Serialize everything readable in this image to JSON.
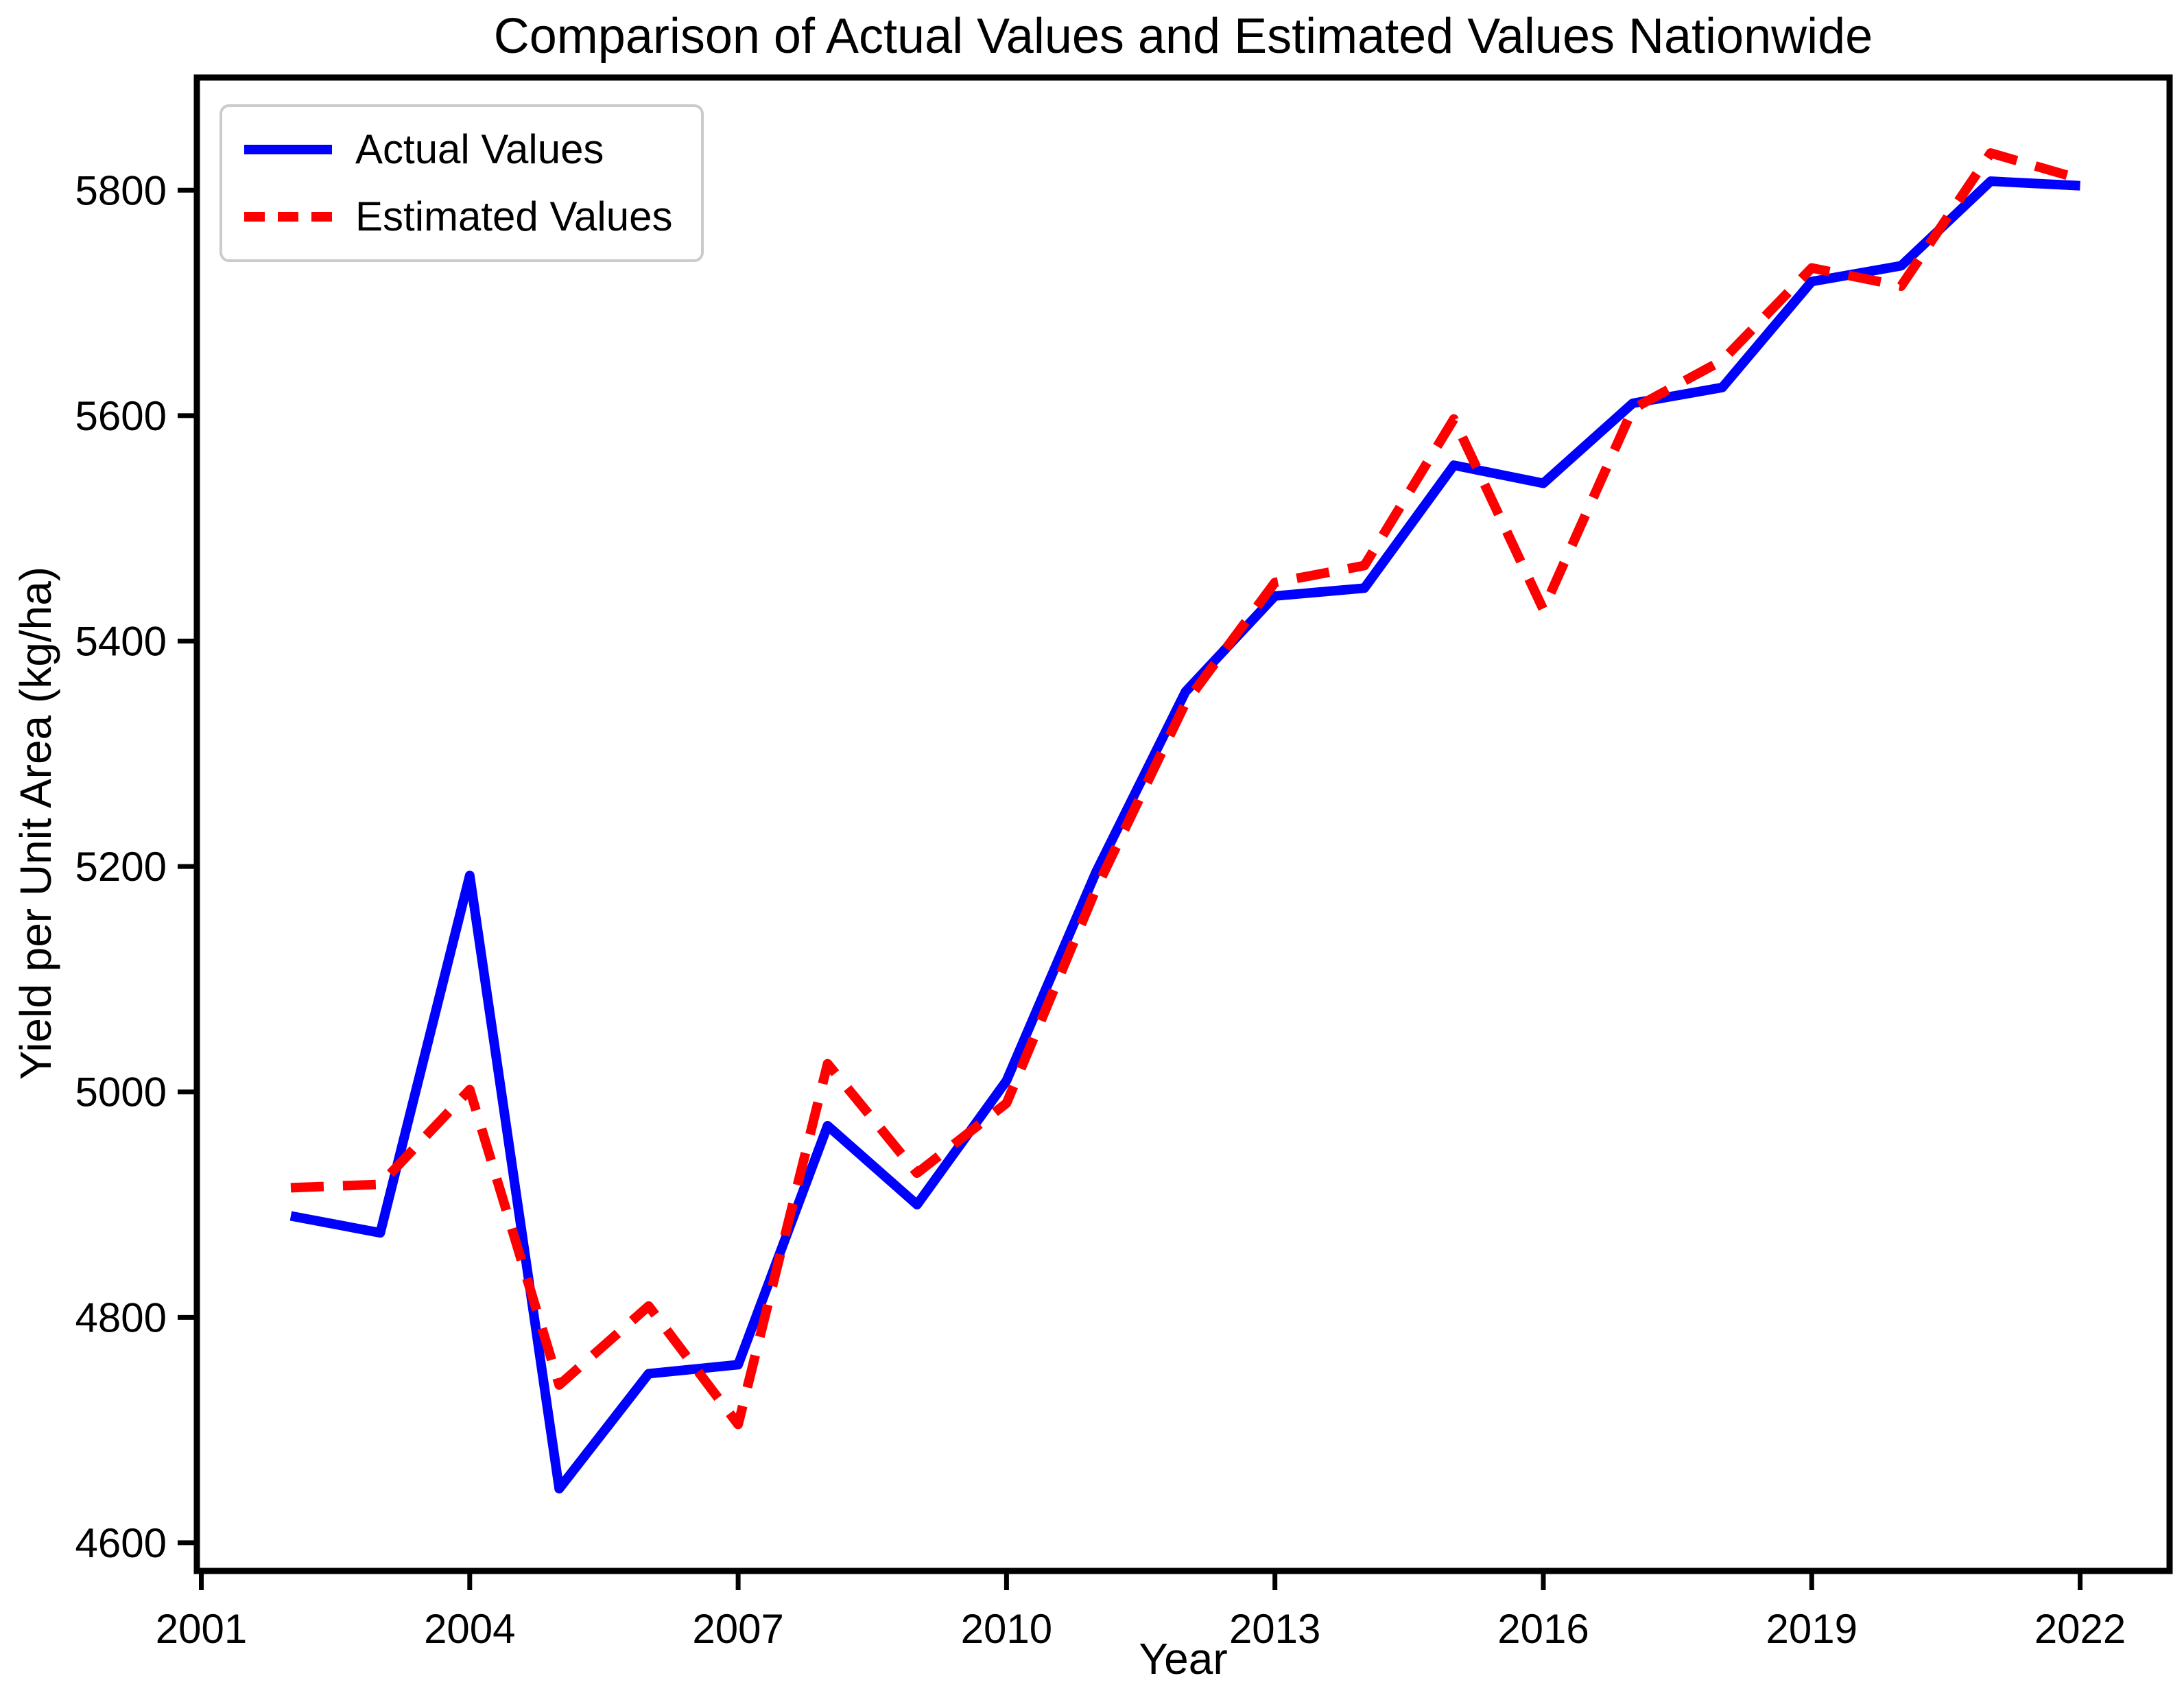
{
  "chart_data": {
    "type": "line",
    "title": "Comparison of Actual Values and Estimated Values Nationwide",
    "xlabel": "Year",
    "ylabel": "Yield per Unit Area (kg/ha)",
    "x": [
      2002,
      2003,
      2004,
      2005,
      2006,
      2007,
      2008,
      2009,
      2010,
      2011,
      2012,
      2013,
      2014,
      2015,
      2016,
      2017,
      2018,
      2019,
      2020,
      2021,
      2022
    ],
    "series": [
      {
        "name": "Actual Values",
        "color": "#0000ff",
        "style": "solid",
        "values": [
          4890,
          4875,
          5192,
          4648,
          4750,
          4758,
          4970,
          4900,
          5010,
          5195,
          5355,
          5440,
          5447,
          5556,
          5540,
          5611,
          5625,
          5719,
          5733,
          5808,
          5804
        ]
      },
      {
        "name": "Estimated Values",
        "color": "#ff0000",
        "style": "dashed",
        "values": [
          4915,
          4918,
          5002,
          4740,
          4810,
          4705,
          5025,
          4928,
          4990,
          5180,
          5345,
          5452,
          5467,
          5597,
          5428,
          5606,
          5649,
          5731,
          5715,
          5833,
          5810
        ]
      }
    ],
    "xticks": [
      2001,
      2004,
      2007,
      2010,
      2013,
      2016,
      2019,
      2022
    ],
    "yticks": [
      4600,
      4800,
      5000,
      5200,
      5400,
      5600,
      5800
    ],
    "xlim": [
      2000.95,
      2023.0
    ],
    "ylim": [
      4575,
      5900
    ],
    "legend_position": "upper left",
    "grid": false,
    "background": "#ffffff",
    "axis_color": "#000000",
    "line_width": 14,
    "dash_pattern": "48 28"
  }
}
